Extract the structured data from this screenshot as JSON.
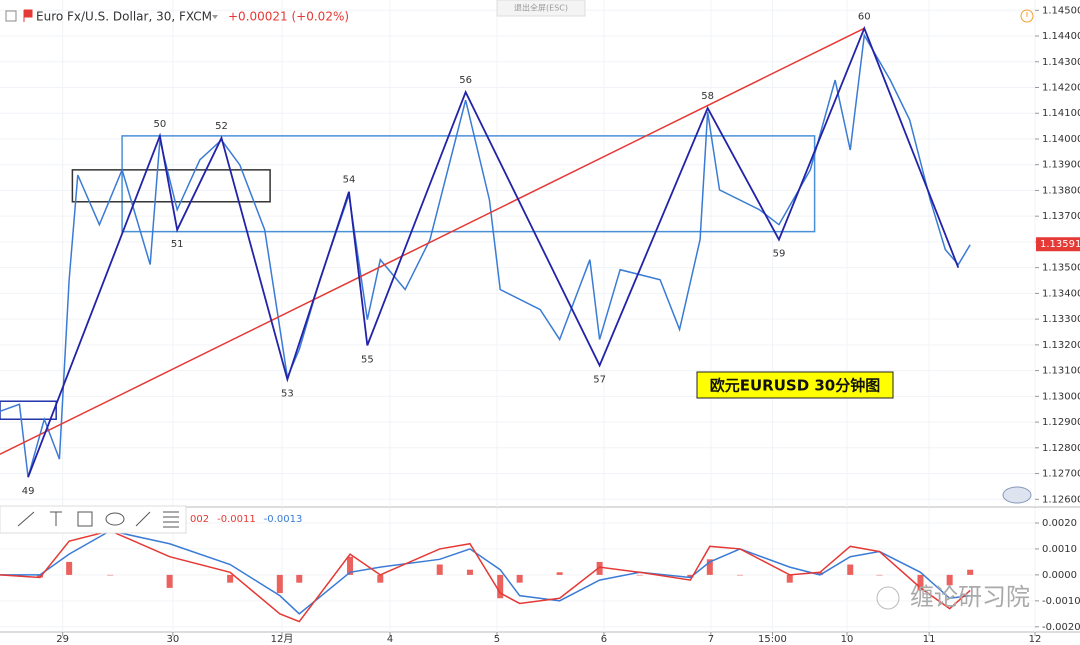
{
  "chart_data": [
    {
      "type": "line",
      "title": "Euro Fx/U.S. Dollar, 30, FXCM",
      "subtitle": "+0.00021 (+0.02%)",
      "fullscreen_hint": "退出全屏(ESC)",
      "annotation": "欧元EURUSD  30分钟图",
      "watermark": "缠论研习院",
      "color": "#3a7bd5",
      "x": [
        0.42,
        0.6,
        0.68,
        0.83,
        0.97,
        1.06,
        1.14,
        1.34,
        1.55,
        1.81,
        1.9,
        2.06,
        2.27,
        2.47,
        2.64,
        2.87,
        3.08,
        3.19,
        3.38,
        3.65,
        3.82,
        3.94,
        4.17,
        4.4,
        4.73,
        4.95,
        5.05,
        5.42,
        5.6,
        5.88,
        5.97,
        6.16,
        6.53,
        6.71,
        6.9,
        6.97,
        7.08,
        7.45,
        7.63,
        7.92,
        8.15,
        8.29,
        8.42,
        8.66,
        8.84,
        9.03,
        9.17,
        9.29,
        9.4
      ],
      "values": [
        1.12942,
        1.12969,
        1.12686,
        1.12911,
        1.12756,
        1.13453,
        1.1386,
        1.13667,
        1.1388,
        1.13512,
        1.13996,
        1.13725,
        1.13919,
        1.13996,
        1.13899,
        1.13647,
        1.13074,
        1.13182,
        1.13453,
        1.13783,
        1.13298,
        1.13531,
        1.13415,
        1.13609,
        1.14151,
        1.13764,
        1.13415,
        1.13337,
        1.13221,
        1.13531,
        1.13221,
        1.13492,
        1.13453,
        1.1326,
        1.13609,
        1.14105,
        1.13802,
        1.13725,
        1.13667,
        1.1388,
        1.14229,
        1.13957,
        1.14403,
        1.14229,
        1.14074,
        1.13764,
        1.1357,
        1.13512,
        1.13589
      ],
      "zigzag": {
        "color": "#2323a8",
        "x": [
          0.68,
          1.9,
          2.06,
          2.47,
          3.08,
          3.65,
          3.82,
          4.73,
          5.97,
          6.97,
          7.63,
          8.42,
          9.29
        ],
        "values": [
          1.12686,
          1.14012,
          1.13647,
          1.14004,
          1.13066,
          1.13795,
          1.13198,
          1.14182,
          1.1312,
          1.1412,
          1.13609,
          1.1443,
          1.135
        ],
        "labels": [
          "49",
          "50",
          "51",
          "52",
          "53",
          "54",
          "55",
          "56",
          "57",
          "58",
          "59",
          "60",
          null
        ]
      },
      "trend_line": {
        "color": "#e53935",
        "x": [
          0.42,
          8.42
        ],
        "values": [
          1.12775,
          1.1443
        ]
      },
      "boxes": [
        {
          "color": "#4a90d9",
          "xlim": [
            1.55,
            7.96
          ],
          "ylim": [
            1.1364,
            1.14012
          ]
        },
        {
          "color": "#333333",
          "xlim": [
            1.09,
            2.92
          ],
          "ylim": [
            1.13756,
            1.1388
          ]
        },
        {
          "color": "#2233aa",
          "xlim": [
            0.42,
            0.94
          ],
          "ylim": [
            1.12911,
            1.12981
          ]
        }
      ],
      "last_price": {
        "value": 1.13591,
        "label": "1.13591"
      },
      "xlim": [
        0.42,
        10.0
      ],
      "xticks": [
        {
          "value": 1.0,
          "label": "29"
        },
        {
          "value": 2.02,
          "label": "30"
        },
        {
          "value": 3.03,
          "label": "12月"
        },
        {
          "value": 4.03,
          "label": "4"
        },
        {
          "value": 5.02,
          "label": "5"
        },
        {
          "value": 6.01,
          "label": "6"
        },
        {
          "value": 7.0,
          "label": "7"
        },
        {
          "value": 7.57,
          "label": "15:00"
        },
        {
          "value": 8.26,
          "label": "10"
        },
        {
          "value": 9.02,
          "label": "11"
        },
        {
          "value": 10.0,
          "label": "12"
        }
      ],
      "ylim": [
        1.1257,
        1.1454
      ],
      "yticks": [
        {
          "value": 1.126,
          "label": "1.12600"
        },
        {
          "value": 1.127,
          "label": "1.12700"
        },
        {
          "value": 1.128,
          "label": "1.12800"
        },
        {
          "value": 1.129,
          "label": "1.12900"
        },
        {
          "value": 1.13,
          "label": "1.13000"
        },
        {
          "value": 1.131,
          "label": "1.13100"
        },
        {
          "value": 1.132,
          "label": "1.13200"
        },
        {
          "value": 1.133,
          "label": "1.13300"
        },
        {
          "value": 1.134,
          "label": "1.13400"
        },
        {
          "value": 1.135,
          "label": "1.13500"
        },
        {
          "value": 1.136,
          "label": "1.13600"
        },
        {
          "value": 1.137,
          "label": "1.13700"
        },
        {
          "value": 1.138,
          "label": "1.13800"
        },
        {
          "value": 1.139,
          "label": "1.13900"
        },
        {
          "value": 1.14,
          "label": "1.14000"
        },
        {
          "value": 1.141,
          "label": "1.14100"
        },
        {
          "value": 1.142,
          "label": "1.14200"
        },
        {
          "value": 1.143,
          "label": "1.14300"
        },
        {
          "value": 1.144,
          "label": "1.14400"
        },
        {
          "value": 1.145,
          "label": "1.14500"
        }
      ],
      "grid": true
    },
    {
      "type": "macd",
      "legend": [
        {
          "text": "002",
          "color": "#e53935"
        },
        {
          "text": "-0.0011",
          "color": "#e53935"
        },
        {
          "text": "-0.0013",
          "color": "#3a7bd5"
        }
      ],
      "x": [
        0.42,
        0.79,
        1.06,
        1.44,
        1.99,
        2.55,
        3.01,
        3.19,
        3.66,
        3.94,
        4.49,
        4.77,
        5.05,
        5.23,
        5.6,
        5.97,
        6.34,
        6.81,
        6.99,
        7.27,
        7.73,
        8.01,
        8.29,
        8.56,
        8.94,
        9.21,
        9.4
      ],
      "macd": {
        "color": "#e53935",
        "values": [
          0,
          -0.0001,
          0.0013,
          0.0017,
          0.0007,
          0.0001,
          -0.0015,
          -0.0018,
          0.0008,
          0,
          0.001,
          0.0012,
          -0.0007,
          -0.0011,
          -0.0009,
          0.0003,
          0.0001,
          -0.0002,
          0.0011,
          0.001,
          0,
          0.0001,
          0.0011,
          0.0009,
          -0.0005,
          -0.0013,
          -0.0006
        ]
      },
      "signal": {
        "color": "#3a7bd5",
        "values": [
          0,
          0,
          0.0008,
          0.0017,
          0.0012,
          0.0004,
          -0.0008,
          -0.0015,
          0.0001,
          0.0003,
          0.0006,
          0.001,
          0.0002,
          -0.0008,
          -0.001,
          -0.0002,
          0.0001,
          -0.0001,
          0.0005,
          0.001,
          0.0003,
          0,
          0.0007,
          0.0009,
          0.0001,
          -0.0009,
          -0.0008
        ]
      },
      "histogram": {
        "color": "#e53935",
        "values": [
          0,
          -0.0001,
          0.0005,
          0,
          -0.0005,
          -0.0003,
          -0.0007,
          -0.0003,
          0.0007,
          -0.0003,
          0.0004,
          0.0002,
          -0.0009,
          -0.0003,
          0.0001,
          0.0005,
          0,
          -0.0001,
          0.0006,
          0,
          -0.0003,
          0.0001,
          0.0004,
          0,
          -0.0006,
          -0.0004,
          0.0002
        ]
      },
      "ylim": [
        -0.0022,
        0.0025
      ],
      "yticks": [
        {
          "value": 0.002,
          "label": "0.0020"
        },
        {
          "value": 0.001,
          "label": "0.0010"
        },
        {
          "value": 0,
          "label": "0.0000"
        },
        {
          "value": -0.001,
          "label": "-0.0010"
        },
        {
          "value": -0.002,
          "label": "-0.0020"
        }
      ]
    }
  ]
}
